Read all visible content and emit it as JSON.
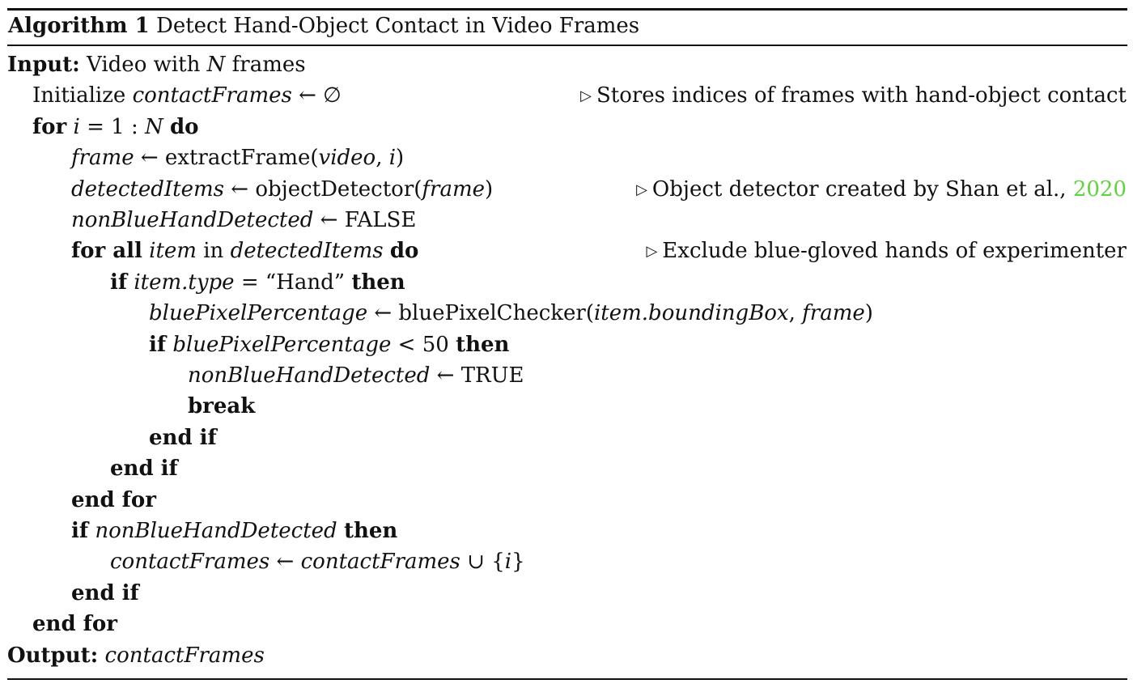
{
  "caption": {
    "label": "Algorithm 1",
    "title": "Detect Hand-Object Contact in Video Frames"
  },
  "colors": {
    "rule": "#111111",
    "citation": "#5fd43c"
  },
  "lines": [
    {
      "tokens": [
        {
          "k": "kw",
          "t": "Input:"
        },
        {
          "k": "t",
          "t": " Video with "
        },
        {
          "k": "v",
          "t": "N"
        },
        {
          "k": "t",
          "t": " frames"
        }
      ]
    },
    {
      "tokens": [
        {
          "k": "t",
          "t": "Initialize "
        },
        {
          "k": "v",
          "t": "contactFrames"
        },
        {
          "k": "t",
          "t": " ← ∅"
        }
      ],
      "comment": [
        {
          "k": "t",
          "t": "Stores indices of frames with hand-object contact"
        }
      ]
    },
    {
      "tokens": [
        {
          "k": "kw",
          "t": "for"
        },
        {
          "k": "t",
          "t": " "
        },
        {
          "k": "v",
          "t": "i"
        },
        {
          "k": "t",
          "t": " = 1 : "
        },
        {
          "k": "v",
          "t": "N"
        },
        {
          "k": "t",
          "t": " "
        },
        {
          "k": "kw",
          "t": "do"
        }
      ]
    },
    {
      "tokens": [
        {
          "k": "v",
          "t": "frame"
        },
        {
          "k": "t",
          "t": " ← extractFrame("
        },
        {
          "k": "v",
          "t": "video"
        },
        {
          "k": "t",
          "t": ", "
        },
        {
          "k": "v",
          "t": "i"
        },
        {
          "k": "t",
          "t": ")"
        }
      ]
    },
    {
      "tokens": [
        {
          "k": "v",
          "t": "detectedItems"
        },
        {
          "k": "t",
          "t": " ← objectDetector("
        },
        {
          "k": "v",
          "t": "frame"
        },
        {
          "k": "t",
          "t": ")"
        }
      ],
      "comment": [
        {
          "k": "t",
          "t": "Object detector created by Shan et al., "
        },
        {
          "k": "cite",
          "t": "2020"
        }
      ]
    },
    {
      "tokens": [
        {
          "k": "v",
          "t": "nonBlueHandDetected"
        },
        {
          "k": "t",
          "t": " ← FALSE"
        }
      ]
    },
    {
      "tokens": [
        {
          "k": "kw",
          "t": "for all"
        },
        {
          "k": "t",
          "t": " "
        },
        {
          "k": "v",
          "t": "item"
        },
        {
          "k": "t",
          "t": " in "
        },
        {
          "k": "v",
          "t": "detectedItems"
        },
        {
          "k": "t",
          "t": " "
        },
        {
          "k": "kw",
          "t": "do"
        }
      ],
      "comment": [
        {
          "k": "t",
          "t": "Exclude blue-gloved hands of experimenter"
        }
      ]
    },
    {
      "tokens": [
        {
          "k": "kw",
          "t": "if"
        },
        {
          "k": "t",
          "t": " "
        },
        {
          "k": "v",
          "t": "item.type"
        },
        {
          "k": "t",
          "t": " = “Hand” "
        },
        {
          "k": "kw",
          "t": "then"
        }
      ]
    },
    {
      "tokens": [
        {
          "k": "v",
          "t": "bluePixelPercentage"
        },
        {
          "k": "t",
          "t": " ← bluePixelChecker("
        },
        {
          "k": "v",
          "t": "item.boundingBox"
        },
        {
          "k": "t",
          "t": ", "
        },
        {
          "k": "v",
          "t": "frame"
        },
        {
          "k": "t",
          "t": ")"
        }
      ]
    },
    {
      "tokens": [
        {
          "k": "kw",
          "t": "if"
        },
        {
          "k": "t",
          "t": " "
        },
        {
          "k": "v",
          "t": "bluePixelPercentage"
        },
        {
          "k": "t",
          "t": " < 50 "
        },
        {
          "k": "kw",
          "t": "then"
        }
      ]
    },
    {
      "tokens": [
        {
          "k": "v",
          "t": "nonBlueHandDetected"
        },
        {
          "k": "t",
          "t": " ← TRUE"
        }
      ]
    },
    {
      "tokens": [
        {
          "k": "kw",
          "t": "break"
        }
      ]
    },
    {
      "tokens": [
        {
          "k": "kw",
          "t": "end if"
        }
      ]
    },
    {
      "tokens": [
        {
          "k": "kw",
          "t": "end if"
        }
      ]
    },
    {
      "tokens": [
        {
          "k": "kw",
          "t": "end for"
        }
      ]
    },
    {
      "tokens": [
        {
          "k": "kw",
          "t": "if"
        },
        {
          "k": "t",
          "t": " "
        },
        {
          "k": "v",
          "t": "nonBlueHandDetected"
        },
        {
          "k": "t",
          "t": " "
        },
        {
          "k": "kw",
          "t": "then"
        }
      ]
    },
    {
      "tokens": [
        {
          "k": "v",
          "t": "contactFrames"
        },
        {
          "k": "t",
          "t": " ← "
        },
        {
          "k": "v",
          "t": "contactFrames"
        },
        {
          "k": "t",
          "t": " ∪ {"
        },
        {
          "k": "v",
          "t": "i"
        },
        {
          "k": "t",
          "t": "}"
        }
      ]
    },
    {
      "tokens": [
        {
          "k": "kw",
          "t": "end if"
        }
      ]
    },
    {
      "tokens": [
        {
          "k": "kw",
          "t": "end for"
        }
      ]
    },
    {
      "tokens": [
        {
          "k": "kw",
          "t": "Output:"
        },
        {
          "k": "t",
          "t": " "
        },
        {
          "k": "v",
          "t": "contactFrames"
        }
      ]
    }
  ]
}
